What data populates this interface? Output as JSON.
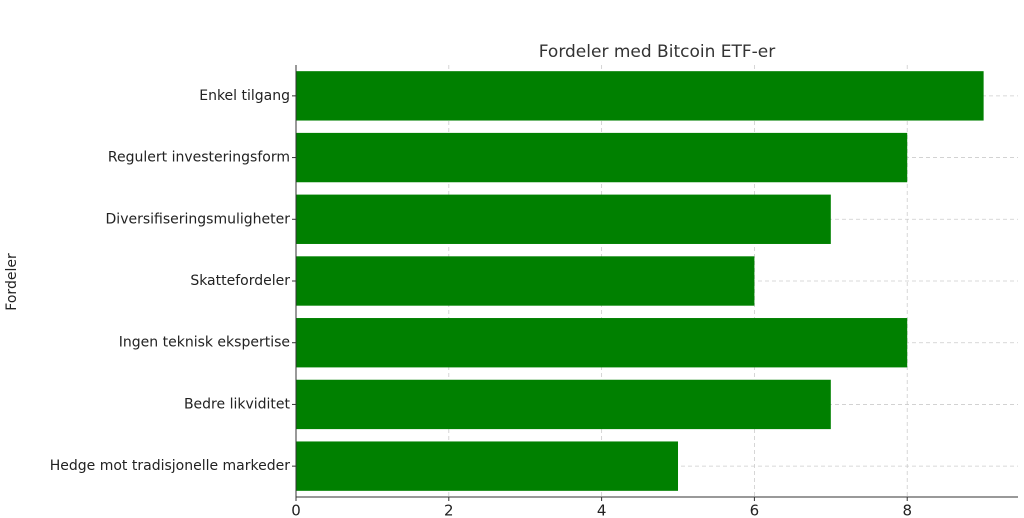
{
  "chart_data": {
    "type": "barh",
    "title": "Fordeler med Bitcoin ETF-er",
    "y_label": "Fordeler",
    "categories": [
      "Enkel tilgang",
      "Regulert investeringsform",
      "Diversifiseringsmuligheter",
      "Skattefordeler",
      "Ingen teknisk ekspertise",
      "Bedre likviditet",
      "Hedge mot tradisjonelle markeder"
    ],
    "values": [
      9,
      8,
      7,
      6,
      8,
      7,
      5
    ],
    "color": "#008000",
    "xlim": [
      0,
      9.45
    ],
    "xticks": [
      0,
      2,
      4,
      6,
      8
    ],
    "grid": true
  }
}
